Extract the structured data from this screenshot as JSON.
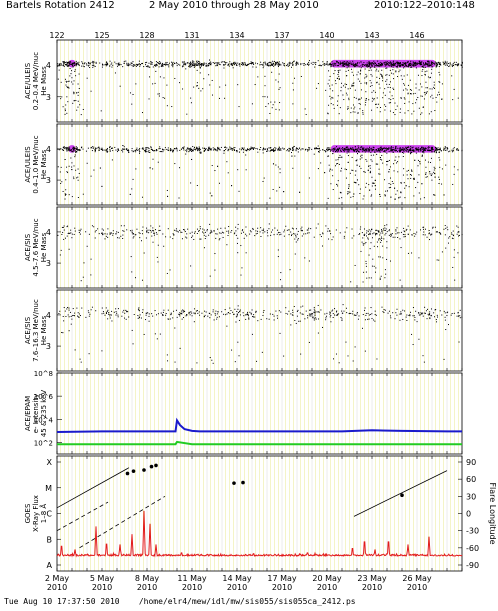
{
  "header": {
    "rotation": "Bartels Rotation 2412",
    "date_range": "2 May 2010 through 28 May 2010",
    "doy_range": "2010:122–2010:148"
  },
  "footer": {
    "text": "Tue Aug 10 17:37:50 2010    /home/elr4/mew/idl/mw/sis055/sis055ca_2412.ps"
  },
  "colors": {
    "background": "#ffffff",
    "grid": "#e8e890",
    "points": "#000000",
    "density_core": "#cc44ee",
    "density_mid": "#8855cc",
    "electron_175": "#1a1acc",
    "electron_45": "#22cc22",
    "xray": "#e21b1b",
    "flare_longitude": "#000000"
  },
  "chart_data": [
    {
      "type": "scatter",
      "panel": "ace-uleis-1",
      "ylabel": [
        "ACE/ULEIS",
        "0.2–0.4 MeV/nuc",
        "He Mass"
      ],
      "ylim": [
        2.2,
        4.8
      ],
      "yticks": [
        3,
        4
      ],
      "x_doy_range": [
        122,
        149
      ],
      "xticks_top": [
        122,
        125,
        128,
        131,
        134,
        137,
        140,
        143,
        146
      ],
      "band_center": 4.05,
      "activity": [
        {
          "from": 122.5,
          "to": 123.5,
          "level": 1.0
        },
        {
          "from": 128.5,
          "to": 129.3,
          "level": 0.35
        },
        {
          "from": 130.8,
          "to": 131.8,
          "level": 0.55
        },
        {
          "from": 135.8,
          "to": 136.8,
          "level": 0.55
        },
        {
          "from": 140.0,
          "to": 147.5,
          "level": 1.0
        }
      ]
    },
    {
      "type": "scatter",
      "panel": "ace-uleis-2",
      "ylabel": [
        "ACE/ULEIS",
        "0.4–1.0 MeV/nuc",
        "He Mass"
      ],
      "ylim": [
        2.2,
        4.8
      ],
      "yticks": [
        3,
        4
      ],
      "x_doy_range": [
        122,
        149
      ],
      "band_center": 4.0,
      "activity": [
        {
          "from": 122.5,
          "to": 123.5,
          "level": 0.9
        },
        {
          "from": 130.8,
          "to": 131.6,
          "level": 0.35
        },
        {
          "from": 135.8,
          "to": 136.6,
          "level": 0.35
        },
        {
          "from": 140.0,
          "to": 147.5,
          "level": 0.85
        }
      ]
    },
    {
      "type": "scatter",
      "panel": "ace-sis-1",
      "ylabel": [
        "ACE/SIS",
        "4.5–7.6 MeV/nuc",
        "He Mass"
      ],
      "ylim": [
        2.2,
        4.8
      ],
      "yticks": [
        3,
        4
      ],
      "x_doy_range": [
        122,
        149
      ],
      "band_center": 4.0,
      "activity": [
        {
          "from": 142.3,
          "to": 144.0,
          "level": 0.8
        }
      ]
    },
    {
      "type": "scatter",
      "panel": "ace-sis-2",
      "ylabel": [
        "ACE/SIS",
        "7.6–16.3 MeV/nuc",
        "He Mass"
      ],
      "ylim": [
        2.2,
        4.8
      ],
      "yticks": [
        3,
        4
      ],
      "x_doy_range": [
        122,
        149
      ],
      "band_center": 4.05,
      "activity": []
    },
    {
      "type": "line",
      "panel": "ace-epam",
      "ylabel": [
        "ACE/EPAM",
        "e- Intensity",
        "45 & 235 keV"
      ],
      "yscale": "log",
      "ylim_exp": [
        1,
        8
      ],
      "ytick_labels": [
        "10^2",
        "10^4",
        "10^6",
        "10^8"
      ],
      "x_doy_range": [
        122,
        149
      ],
      "series": [
        {
          "name": "235 keV",
          "color": "#1a1acc",
          "x": [
            122,
            125,
            128,
            129.9,
            130.0,
            130.2,
            130.5,
            131,
            131.5,
            133,
            136,
            139,
            141,
            143,
            145,
            148,
            149
          ],
          "y_exp": [
            2.9,
            2.95,
            2.95,
            2.95,
            3.9,
            3.5,
            3.15,
            3.0,
            2.95,
            2.95,
            2.95,
            2.95,
            2.95,
            3.05,
            3.0,
            2.95,
            2.95
          ]
        },
        {
          "name": "45 keV",
          "color": "#22cc22",
          "x": [
            122,
            129.9,
            130.0,
            131,
            149
          ],
          "y_exp": [
            1.85,
            1.85,
            2.05,
            1.85,
            1.85
          ]
        }
      ]
    },
    {
      "type": "line",
      "panel": "goes-xray",
      "ylabel": [
        "GOES",
        "X-Ray Flux",
        "1–8 Å"
      ],
      "ylabel_right": "Flare Longitude",
      "class_labels": [
        "A",
        "B",
        "C",
        "M",
        "X"
      ],
      "right_ticks": [
        90,
        60,
        30,
        0,
        -30,
        -60,
        -90
      ],
      "x_doy_range": [
        122,
        149
      ],
      "xticks": [
        {
          "doy": 122,
          "label": "2 May",
          "year": "2010"
        },
        {
          "doy": 125,
          "label": "5 May",
          "year": "2010"
        },
        {
          "doy": 128,
          "label": "8 May",
          "year": "2010"
        },
        {
          "doy": 131,
          "label": "11 May",
          "year": "2010"
        },
        {
          "doy": 134,
          "label": "14 May",
          "year": "2010"
        },
        {
          "doy": 137,
          "label": "17 May",
          "year": "2010"
        },
        {
          "doy": 140,
          "label": "20 May",
          "year": "2010"
        },
        {
          "doy": 143,
          "label": "23 May",
          "year": "2010"
        },
        {
          "doy": 146,
          "label": "26 May",
          "year": "2010"
        }
      ],
      "xray_peaks": [
        {
          "doy": 122.3,
          "class": 0.8
        },
        {
          "doy": 123.2,
          "class": 0.6
        },
        {
          "doy": 124.6,
          "class": 1.5
        },
        {
          "doy": 125.3,
          "class": 0.9
        },
        {
          "doy": 126.2,
          "class": 0.8
        },
        {
          "doy": 127.0,
          "class": 1.2
        },
        {
          "doy": 127.8,
          "class": 2.1
        },
        {
          "doy": 128.2,
          "class": 1.6
        },
        {
          "doy": 128.6,
          "class": 0.8
        },
        {
          "doy": 130.3,
          "class": 0.5
        },
        {
          "doy": 134.5,
          "class": 0.35
        },
        {
          "doy": 138.7,
          "class": 0.5
        },
        {
          "doy": 141.7,
          "class": 0.7
        },
        {
          "doy": 142.5,
          "class": 1.0
        },
        {
          "doy": 143.2,
          "class": 0.6
        },
        {
          "doy": 144.1,
          "class": 1.0
        },
        {
          "doy": 145.4,
          "class": 0.8
        },
        {
          "doy": 146.8,
          "class": 1.1
        }
      ],
      "flare_longitude_tracks": [
        {
          "x": [
            122.0,
            126.8
          ],
          "y": [
            10,
            80
          ],
          "style": "solid"
        },
        {
          "x": [
            122.0,
            125.4
          ],
          "y": [
            -30,
            20
          ],
          "style": "dashed"
        },
        {
          "x": [
            123.5,
            129.2
          ],
          "y": [
            -60,
            30
          ],
          "style": "dashed"
        },
        {
          "x": [
            141.8,
            148.0
          ],
          "y": [
            -5,
            75
          ],
          "style": "solid"
        }
      ],
      "flare_markers": [
        {
          "doy": 126.7,
          "lon": 70
        },
        {
          "doy": 127.1,
          "lon": 74
        },
        {
          "doy": 127.8,
          "lon": 76
        },
        {
          "doy": 128.3,
          "lon": 82
        },
        {
          "doy": 128.6,
          "lon": 84
        },
        {
          "doy": 133.8,
          "lon": 53
        },
        {
          "doy": 134.4,
          "lon": 54
        },
        {
          "doy": 145.0,
          "lon": 32
        }
      ]
    }
  ]
}
